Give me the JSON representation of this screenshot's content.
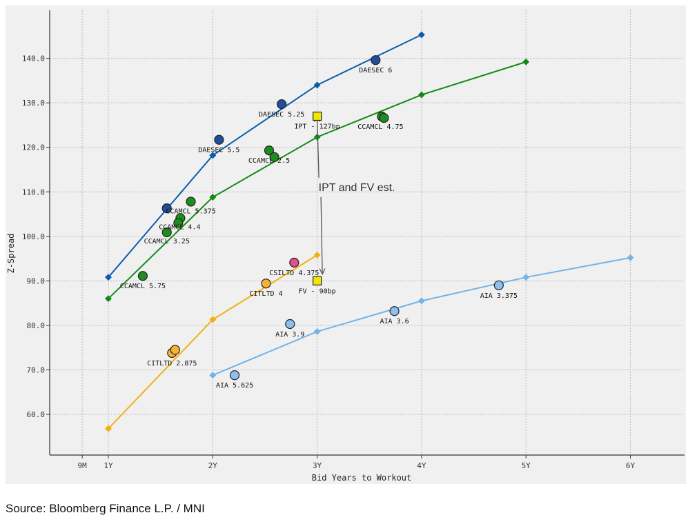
{
  "chart_data": {
    "type": "scatter",
    "xlabel": "Bid Years to Workout",
    "ylabel": "Z-Spread",
    "xlim": [
      0.7,
      6.5
    ],
    "ylim": [
      51,
      160
    ],
    "x_ticks": [
      {
        "value": 0.75,
        "label": "9M"
      },
      {
        "value": 1,
        "label": "1Y"
      },
      {
        "value": 2,
        "label": "2Y"
      },
      {
        "value": 3,
        "label": "3Y"
      },
      {
        "value": 4,
        "label": "4Y"
      },
      {
        "value": 5,
        "label": "5Y"
      },
      {
        "value": 6,
        "label": "6Y"
      }
    ],
    "y_ticks": [
      60,
      70,
      80,
      90,
      100,
      110,
      120,
      130,
      140
    ],
    "y_tick_labels": [
      "60.0",
      "70.0",
      "80.0",
      "90.0",
      "100.0",
      "110.0",
      "120.0",
      "130.0",
      "140.0"
    ],
    "grid": true,
    "curves": [
      {
        "color": "#0b5cad",
        "x": [
          1,
          2,
          3,
          4
        ],
        "y": [
          90.8,
          118.2,
          134.0,
          145.3
        ]
      },
      {
        "color": "#148a14",
        "x": [
          1,
          2,
          3,
          4,
          5
        ],
        "y": [
          86.0,
          108.8,
          122.3,
          131.8,
          139.2
        ]
      },
      {
        "color": "#f2b110",
        "x": [
          1,
          2,
          3
        ],
        "y": [
          56.8,
          81.3,
          95.8
        ]
      },
      {
        "color": "#72b3e8",
        "x": [
          2,
          3,
          4,
          5,
          6
        ],
        "y": [
          68.8,
          78.6,
          85.5,
          90.8,
          95.2
        ]
      }
    ],
    "points": [
      {
        "label": "DAESEC 6",
        "x": 3.56,
        "y": 139.6,
        "color": "#1f4f9c",
        "shape": "circle"
      },
      {
        "label": "DAESEC 5.25",
        "x": 2.66,
        "y": 129.7,
        "color": "#1f4f9c",
        "shape": "circle"
      },
      {
        "label": "DAESEC 5.5",
        "x": 2.06,
        "y": 121.7,
        "color": "#1f4f9c",
        "shape": "circle"
      },
      {
        "label": "",
        "x": 1.56,
        "y": 106.3,
        "color": "#1f4f9c",
        "shape": "circle"
      },
      {
        "label": "CCAMCL 4.75",
        "x": 3.62,
        "y": 126.9,
        "color": "#1e8c1e",
        "shape": "circle"
      },
      {
        "label": "",
        "x": 3.64,
        "y": 126.6,
        "color": "#1e8c1e",
        "shape": "circle"
      },
      {
        "label": "CCAMCL 2.5",
        "x": 2.54,
        "y": 119.3,
        "color": "#1e8c1e",
        "shape": "circle"
      },
      {
        "label": "",
        "x": 2.59,
        "y": 117.8,
        "color": "#1e8c1e",
        "shape": "circle"
      },
      {
        "label": "CCAMCL 5.375",
        "x": 1.79,
        "y": 107.8,
        "color": "#1e8c1e",
        "shape": "circle"
      },
      {
        "label": "CCAMCL 4.4",
        "x": 1.69,
        "y": 104.1,
        "color": "#1e8c1e",
        "shape": "circle"
      },
      {
        "label": "",
        "x": 1.67,
        "y": 103.0,
        "color": "#1e8c1e",
        "shape": "circle"
      },
      {
        "label": "CCAMCL 3.25",
        "x": 1.56,
        "y": 100.9,
        "color": "#1e8c1e",
        "shape": "circle"
      },
      {
        "label": "CCAMCL 5.75",
        "x": 1.33,
        "y": 91.1,
        "color": "#1e8c1e",
        "shape": "circle"
      },
      {
        "label": "CSILTD 4.375",
        "x": 2.78,
        "y": 94.1,
        "color": "#e0508c",
        "shape": "circle"
      },
      {
        "label": "CITLTD 4",
        "x": 2.51,
        "y": 89.4,
        "color": "#f7b234",
        "shape": "circle"
      },
      {
        "label": "CITLTD 2.875",
        "x": 1.61,
        "y": 73.8,
        "color": "#f7b234",
        "shape": "circle"
      },
      {
        "label": "",
        "x": 1.64,
        "y": 74.5,
        "color": "#f7b234",
        "shape": "circle"
      },
      {
        "label": "AIA 3.375",
        "x": 4.74,
        "y": 89.0,
        "color": "#8ec0ec",
        "shape": "circle"
      },
      {
        "label": "AIA 3.6",
        "x": 3.74,
        "y": 83.2,
        "color": "#8ec0ec",
        "shape": "circle"
      },
      {
        "label": "AIA 3.9",
        "x": 2.74,
        "y": 80.3,
        "color": "#8ec0ec",
        "shape": "circle"
      },
      {
        "label": "AIA 5.625",
        "x": 2.21,
        "y": 68.8,
        "color": "#8ec0ec",
        "shape": "circle"
      },
      {
        "label": "IPT - 127bp",
        "x": 3.0,
        "y": 127.0,
        "color": "#f5e400",
        "shape": "square"
      },
      {
        "label": "FV - 90bp",
        "x": 3.0,
        "y": 90.0,
        "color": "#f5e400",
        "shape": "square"
      }
    ],
    "annotation": {
      "text": "IPT and FV est.",
      "x": 3.38,
      "y": 111.0,
      "arrows_to": [
        {
          "x": 3.0,
          "y": 127.0
        },
        {
          "x": 3.05,
          "y": 91.5
        }
      ]
    }
  },
  "source": "Source: Bloomberg Finance L.P. / MNI"
}
